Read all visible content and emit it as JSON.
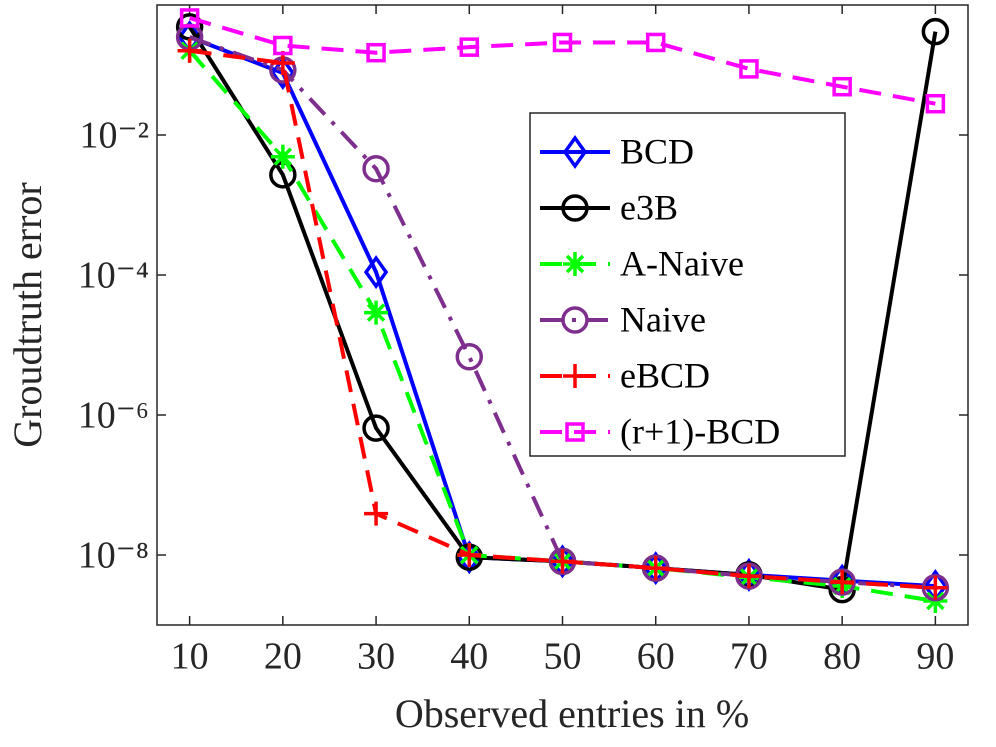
{
  "chart_data": {
    "type": "line",
    "xlabel": "Observed entries in %",
    "ylabel": "Groudtruth error",
    "x": [
      10,
      20,
      30,
      40,
      50,
      60,
      70,
      80,
      90
    ],
    "xlim": [
      6.5,
      93.5
    ],
    "xticks": [
      10,
      20,
      30,
      40,
      50,
      60,
      70,
      80,
      90
    ],
    "yscale": "log",
    "ylim": [
      1e-09,
      0.72
    ],
    "yticks": [
      {
        "value": 1e-08,
        "label": "10⁻⁸"
      },
      {
        "value": 1e-06,
        "label": "10⁻⁶"
      },
      {
        "value": 0.0001,
        "label": "10⁻⁴"
      },
      {
        "value": 0.01,
        "label": "10⁻²"
      }
    ],
    "legend": "upper right",
    "series": [
      {
        "name": "BCD",
        "color": "#0000ff",
        "line_style": "solid",
        "marker": "diamond",
        "values": [
          0.25,
          0.077,
          0.00011,
          9.3e-09,
          8.1e-09,
          6.5e-09,
          5.2e-09,
          4.3e-09,
          3.6e-09
        ]
      },
      {
        "name": "e3B",
        "color": "#000000",
        "line_style": "solid",
        "marker": "circle",
        "values": [
          0.35,
          0.0027,
          6.5e-07,
          9.3e-09,
          8.1e-09,
          6.5e-09,
          5.2e-09,
          3.2e-09,
          0.3
        ]
      },
      {
        "name": "A-Naive",
        "color": "#00ff00",
        "line_style": "dashed",
        "marker": "star",
        "values": [
          0.16,
          0.0049,
          2.9e-05,
          1e-08,
          8.1e-09,
          6.5e-09,
          4.8e-09,
          3.6e-09,
          2.2e-09
        ]
      },
      {
        "name": "Naive",
        "color": "#7e2f8e",
        "line_style": "dashdot",
        "marker": "circle",
        "values": [
          0.25,
          0.085,
          0.0033,
          6.8e-06,
          8.1e-09,
          6.5e-09,
          5e-09,
          4.1e-09,
          3.4e-09
        ]
      },
      {
        "name": "eBCD",
        "color": "#ff0000",
        "line_style": "dashed",
        "marker": "plus",
        "values": [
          0.16,
          0.107,
          3.9e-08,
          1e-08,
          8.1e-09,
          6.5e-09,
          5e-09,
          4.1e-09,
          3.4e-09
        ]
      },
      {
        "name": "(r+1)-BCD",
        "color": "#ff00ff",
        "line_style": "dashed",
        "marker": "square",
        "values": [
          0.47,
          0.19,
          0.15,
          0.18,
          0.21,
          0.21,
          0.088,
          0.049,
          0.028
        ]
      }
    ]
  }
}
